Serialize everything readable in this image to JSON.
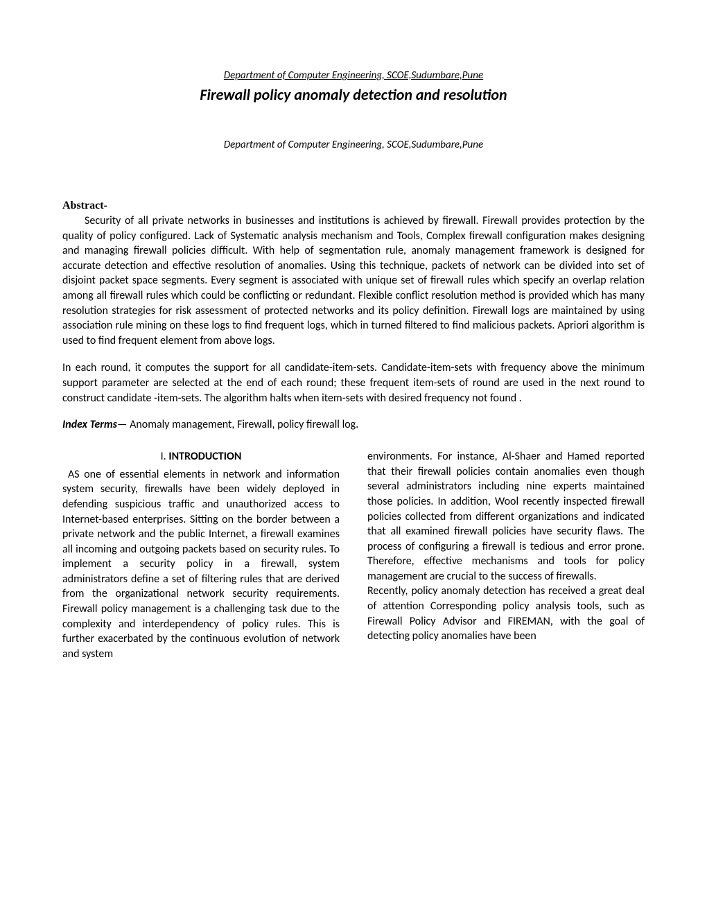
{
  "header_dept": "Department of Computer Engineering, SCOE,Sudumbare,Pune",
  "title": "Firewall policy anomaly detection and resolution",
  "dept_sub": "Department of Computer Engineering, SCOE,Sudumbare,Pune",
  "abstract_label": "Abstract-",
  "abstract_para1": "Security of all private networks in businesses and institutions is achieved by firewall. Firewall provides protection by the quality of policy configured. Lack of Systematic analysis mechanism and Tools, Complex firewall configuration makes designing and managing firewall policies difficult. With help of segmentation rule, anomaly management framework is designed for accurate detection and effective resolution of anomalies. Using this technique, packets of network can be divided into set of disjoint packet space segments. Every segment is associated with unique set of firewall rules which specify an overlap relation among all firewall rules which could be conflicting or redundant. Flexible conflict resolution method is provided which has many resolution strategies for risk assessment of protected networks and its policy definition.  Firewall logs are maintained by using association rule mining on these logs to find frequent logs, which in turned filtered to find malicious packets. Apriori algorithm is used to find frequent element from above logs.",
  "abstract_para2": "In each round, it computes the support for all candidate-item-sets. Candidate-item-sets with frequency above the minimum support parameter are selected at the end of each round; these frequent item-sets of round are used in the next round to construct candidate -item-sets. The algorithm halts when item-sets with desired frequency not found .",
  "index_terms_label": "Index Terms",
  "index_terms_text": "— Anomaly management, Firewall, policy firewall log.",
  "section_number": "I.",
  "section_title": "INTRODUCTION",
  "col1_text": " AS one of essential elements in network and information system security, firewalls have been widely deployed in defending suspicious traffic and unauthorized access to Internet-based enterprises. Sitting on the border between a private network and the public Internet, a firewall examines all incoming and outgoing packets based on security rules. To implement a security policy in a firewall, system administrators define a set of filtering rules that are derived from the organizational network security requirements. Firewall policy management is a challenging task due to the complexity and interdependency of policy rules. This is further exacerbated by the continuous evolution of network and system",
  "col2_para1": "environments. For instance, Al-Shaer and Hamed reported that their firewall policies contain anomalies even though several administrators including nine experts maintained those policies. In addition, Wool recently inspected firewall policies collected from different organizations and indicated that all examined firewall policies have security flaws. The process of configuring a firewall is tedious and error prone. Therefore, effective mechanisms and tools for policy management are crucial to the success of firewalls.",
  "col2_para2": "Recently, policy anomaly detection has received a great deal of attention Corresponding policy analysis tools, such as Firewall Policy Advisor and FIREMAN, with the goal of detecting policy anomalies have been"
}
